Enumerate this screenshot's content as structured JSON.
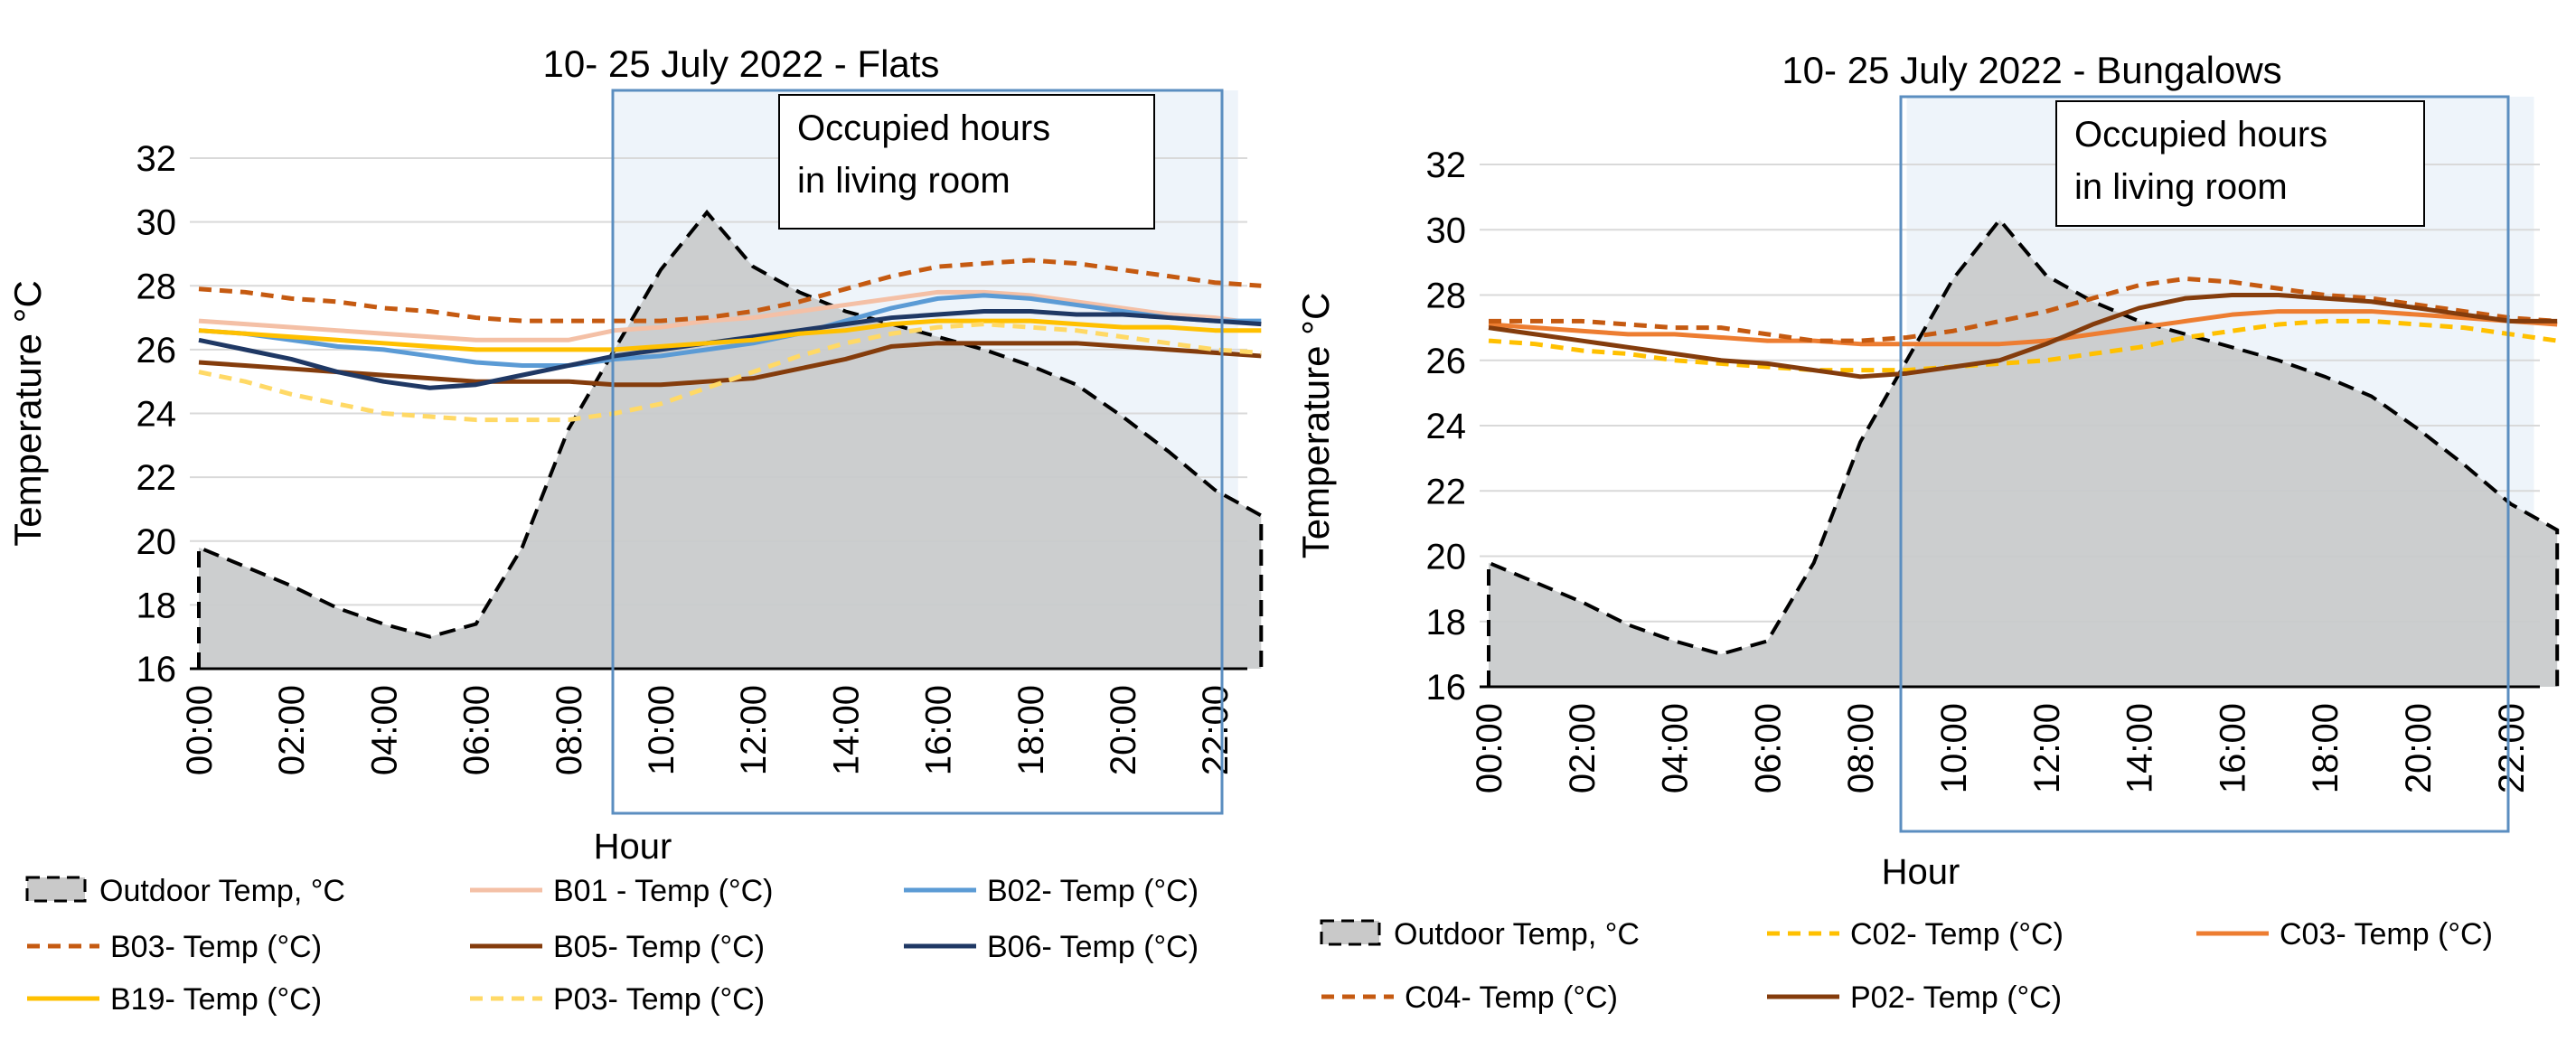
{
  "chart_data": [
    {
      "type": "line",
      "title": "10- 25 July 2022 - Flats",
      "xlabel": "Hour",
      "ylabel": "Temperature °C",
      "ylim": [
        16,
        32
      ],
      "yticks": [
        "16",
        "18",
        "20",
        "22",
        "24",
        "26",
        "28",
        "30",
        "32"
      ],
      "xticks": [
        "00:00",
        "02:00",
        "04:00",
        "06:00",
        "08:00",
        "10:00",
        "12:00",
        "14:00",
        "16:00",
        "18:00",
        "20:00",
        "22:00"
      ],
      "x": [
        0,
        1,
        2,
        3,
        4,
        5,
        6,
        7,
        8,
        9,
        10,
        11,
        12,
        13,
        14,
        15,
        16,
        17,
        18,
        19,
        20,
        21,
        22,
        23
      ],
      "annotation": {
        "line1": "Occupied hours",
        "line2": "in living room",
        "start_hour": 9,
        "end_hour": 22.5
      },
      "outdoor": {
        "name": "Outdoor Temp, °C",
        "values": [
          19.8,
          19.2,
          18.6,
          17.9,
          17.4,
          17.0,
          17.4,
          19.8,
          23.5,
          26.0,
          28.5,
          30.3,
          28.6,
          27.8,
          27.2,
          26.8,
          26.4,
          26.0,
          25.5,
          24.9,
          23.9,
          22.8,
          21.6,
          20.8
        ]
      },
      "series": [
        {
          "name": "B01 - Temp (°C)",
          "color": "#f4c0a6",
          "dash": "solid",
          "values": [
            26.9,
            26.8,
            26.7,
            26.6,
            26.5,
            26.4,
            26.3,
            26.3,
            26.3,
            26.6,
            26.7,
            26.9,
            27.0,
            27.2,
            27.4,
            27.6,
            27.8,
            27.8,
            27.7,
            27.5,
            27.3,
            27.1,
            27.0,
            26.8
          ]
        },
        {
          "name": "B02- Temp (°C)",
          "color": "#5b9bd5",
          "dash": "solid",
          "values": [
            26.6,
            26.5,
            26.3,
            26.1,
            26.0,
            25.8,
            25.6,
            25.5,
            25.5,
            25.7,
            25.8,
            26.0,
            26.2,
            26.5,
            26.9,
            27.3,
            27.6,
            27.7,
            27.6,
            27.4,
            27.2,
            27.0,
            26.9,
            26.9
          ]
        },
        {
          "name": "B03- Temp (°C)",
          "color": "#c55a11",
          "dash": "dash",
          "values": [
            27.9,
            27.8,
            27.6,
            27.5,
            27.3,
            27.2,
            27.0,
            26.9,
            26.9,
            26.9,
            26.9,
            27.0,
            27.2,
            27.5,
            27.9,
            28.3,
            28.6,
            28.7,
            28.8,
            28.7,
            28.5,
            28.3,
            28.1,
            28.0
          ]
        },
        {
          "name": "B05- Temp (°C)",
          "color": "#843c0c",
          "dash": "solid",
          "values": [
            25.6,
            25.5,
            25.4,
            25.3,
            25.2,
            25.1,
            25.0,
            25.0,
            25.0,
            24.9,
            24.9,
            25.0,
            25.1,
            25.4,
            25.7,
            26.1,
            26.2,
            26.2,
            26.2,
            26.2,
            26.1,
            26.0,
            25.9,
            25.8
          ]
        },
        {
          "name": "B06- Temp (°C)",
          "color": "#1f3864",
          "dash": "solid",
          "values": [
            26.3,
            26.0,
            25.7,
            25.3,
            25.0,
            24.8,
            24.9,
            25.2,
            25.5,
            25.8,
            26.0,
            26.2,
            26.4,
            26.6,
            26.8,
            27.0,
            27.1,
            27.2,
            27.2,
            27.1,
            27.1,
            27.0,
            26.9,
            26.8
          ]
        },
        {
          "name": "B19- Temp (°C)",
          "color": "#ffc000",
          "dash": "solid",
          "values": [
            26.6,
            26.5,
            26.4,
            26.3,
            26.2,
            26.1,
            26.0,
            26.0,
            26.0,
            26.0,
            26.1,
            26.2,
            26.3,
            26.5,
            26.6,
            26.8,
            26.9,
            26.9,
            26.9,
            26.8,
            26.7,
            26.7,
            26.6,
            26.6
          ]
        },
        {
          "name": "P03- Temp (°C)",
          "color": "#ffd966",
          "dash": "dash",
          "values": [
            25.3,
            25.0,
            24.6,
            24.3,
            24.0,
            23.9,
            23.8,
            23.8,
            23.8,
            24.0,
            24.3,
            24.8,
            25.3,
            25.8,
            26.2,
            26.5,
            26.7,
            26.8,
            26.7,
            26.6,
            26.4,
            26.2,
            26.0,
            25.9
          ]
        }
      ]
    },
    {
      "type": "line",
      "title": "10- 25 July 2022 - Bungalows",
      "xlabel": "Hour",
      "ylabel": "Temperature °C",
      "ylim": [
        16,
        32
      ],
      "yticks": [
        "16",
        "18",
        "20",
        "22",
        "24",
        "26",
        "28",
        "30",
        "32"
      ],
      "xticks": [
        "00:00",
        "02:00",
        "04:00",
        "06:00",
        "08:00",
        "10:00",
        "12:00",
        "14:00",
        "16:00",
        "18:00",
        "20:00",
        "22:00"
      ],
      "x": [
        0,
        1,
        2,
        3,
        4,
        5,
        6,
        7,
        8,
        9,
        10,
        11,
        12,
        13,
        14,
        15,
        16,
        17,
        18,
        19,
        20,
        21,
        22,
        23
      ],
      "annotation": {
        "line1": "Occupied hours",
        "line2": "in living room",
        "start_hour": 9,
        "end_hour": 22.5
      },
      "outdoor": {
        "name": "Outdoor Temp, °C",
        "values": [
          19.8,
          19.2,
          18.6,
          17.9,
          17.4,
          17.0,
          17.4,
          19.8,
          23.5,
          26.0,
          28.5,
          30.3,
          28.6,
          27.8,
          27.2,
          26.8,
          26.4,
          26.0,
          25.5,
          24.9,
          23.9,
          22.8,
          21.6,
          20.8
        ]
      },
      "series": [
        {
          "name": "C02- Temp (°C)",
          "color": "#ffc000",
          "dash": "dash",
          "values": [
            26.6,
            26.5,
            26.3,
            26.2,
            26.0,
            25.9,
            25.8,
            25.7,
            25.7,
            25.7,
            25.8,
            25.9,
            26.0,
            26.2,
            26.4,
            26.7,
            26.9,
            27.1,
            27.2,
            27.2,
            27.1,
            27.0,
            26.8,
            26.6
          ]
        },
        {
          "name": "C03- Temp (°C)",
          "color": "#ed7d31",
          "dash": "solid",
          "values": [
            27.1,
            27.0,
            26.9,
            26.8,
            26.8,
            26.7,
            26.6,
            26.6,
            26.5,
            26.5,
            26.5,
            26.5,
            26.6,
            26.8,
            27.0,
            27.2,
            27.4,
            27.5,
            27.5,
            27.5,
            27.4,
            27.3,
            27.2,
            27.1
          ]
        },
        {
          "name": "C04- Temp (°C)",
          "color": "#c55a11",
          "dash": "dash",
          "values": [
            27.2,
            27.2,
            27.2,
            27.1,
            27.0,
            27.0,
            26.8,
            26.6,
            26.6,
            26.7,
            26.9,
            27.2,
            27.5,
            27.9,
            28.3,
            28.5,
            28.4,
            28.2,
            28.0,
            27.9,
            27.7,
            27.5,
            27.3,
            27.2
          ]
        },
        {
          "name": "P02- Temp (°C)",
          "color": "#843c0c",
          "dash": "solid",
          "values": [
            27.0,
            26.8,
            26.6,
            26.4,
            26.2,
            26.0,
            25.9,
            25.7,
            25.5,
            25.6,
            25.8,
            26.0,
            26.5,
            27.1,
            27.6,
            27.9,
            28.0,
            28.0,
            27.9,
            27.8,
            27.6,
            27.4,
            27.2,
            27.2
          ]
        }
      ]
    }
  ]
}
